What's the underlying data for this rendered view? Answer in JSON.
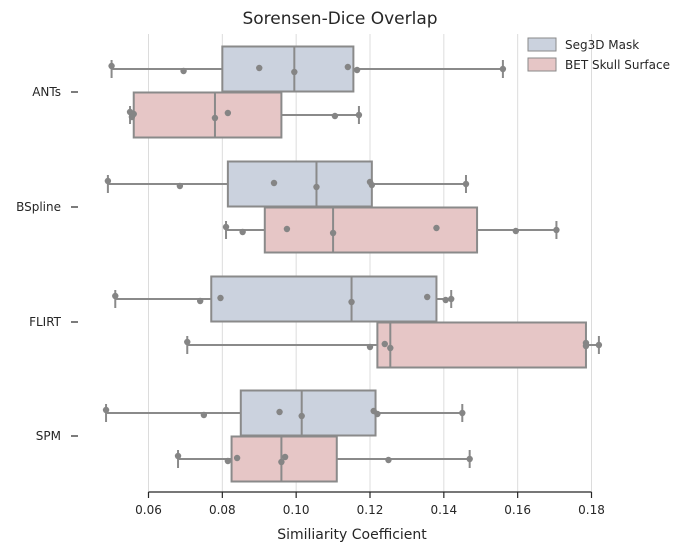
{
  "chart_data": {
    "type": "box",
    "title": "Sorensen-Dice Overlap",
    "xlabel": "Similiarity Coefficient",
    "ylabel": "",
    "xlim": [
      0.046,
      0.184
    ],
    "xticks": [
      0.06,
      0.08,
      0.1,
      0.12,
      0.14,
      0.16,
      0.18
    ],
    "xtick_labels": [
      "0.06",
      "0.08",
      "0.10",
      "0.12",
      "0.14",
      "0.16",
      "0.18"
    ],
    "grid": "vertical",
    "legend_position": "top-right",
    "categories": [
      "ANTs",
      "BSpline",
      "FLIRT",
      "SPM"
    ],
    "series": [
      {
        "name": "Seg3D Mask",
        "color": "#cbd2de",
        "boxes": [
          {
            "whisker_low": 0.05,
            "q1": 0.08,
            "median": 0.0995,
            "q3": 0.1155,
            "whisker_high": 0.156,
            "points": [
              0.05,
              0.0695,
              0.09,
              0.0995,
              0.114,
              0.1165,
              0.156
            ]
          },
          {
            "whisker_low": 0.049,
            "q1": 0.0815,
            "median": 0.1055,
            "q3": 0.1205,
            "whisker_high": 0.146,
            "points": [
              0.049,
              0.0685,
              0.094,
              0.1055,
              0.12,
              0.1205,
              0.146
            ]
          },
          {
            "whisker_low": 0.051,
            "q1": 0.077,
            "median": 0.115,
            "q3": 0.138,
            "whisker_high": 0.142,
            "points": [
              0.051,
              0.074,
              0.0795,
              0.115,
              0.1355,
              0.1405,
              0.142
            ]
          },
          {
            "whisker_low": 0.0485,
            "q1": 0.085,
            "median": 0.1015,
            "q3": 0.1215,
            "whisker_high": 0.145,
            "points": [
              0.0485,
              0.075,
              0.0955,
              0.1015,
              0.121,
              0.122,
              0.145
            ]
          }
        ]
      },
      {
        "name": "BET Skull Surface",
        "color": "#e6c6c6",
        "boxes": [
          {
            "whisker_low": 0.055,
            "q1": 0.056,
            "median": 0.078,
            "q3": 0.096,
            "whisker_high": 0.117,
            "points": [
              0.055,
              0.0555,
              0.056,
              0.078,
              0.0815,
              0.1105,
              0.117
            ]
          },
          {
            "whisker_low": 0.081,
            "q1": 0.0915,
            "median": 0.11,
            "q3": 0.149,
            "whisker_high": 0.1705,
            "points": [
              0.081,
              0.0855,
              0.0975,
              0.11,
              0.138,
              0.1595,
              0.1705
            ]
          },
          {
            "whisker_low": 0.0705,
            "q1": 0.122,
            "median": 0.1255,
            "q3": 0.1785,
            "whisker_high": 0.182,
            "points": [
              0.0705,
              0.12,
              0.124,
              0.1255,
              0.1785,
              0.1785,
              0.182
            ]
          },
          {
            "whisker_low": 0.068,
            "q1": 0.0825,
            "median": 0.096,
            "q3": 0.111,
            "whisker_high": 0.147,
            "points": [
              0.068,
              0.0815,
              0.084,
              0.096,
              0.097,
              0.125,
              0.147
            ]
          }
        ]
      }
    ]
  }
}
